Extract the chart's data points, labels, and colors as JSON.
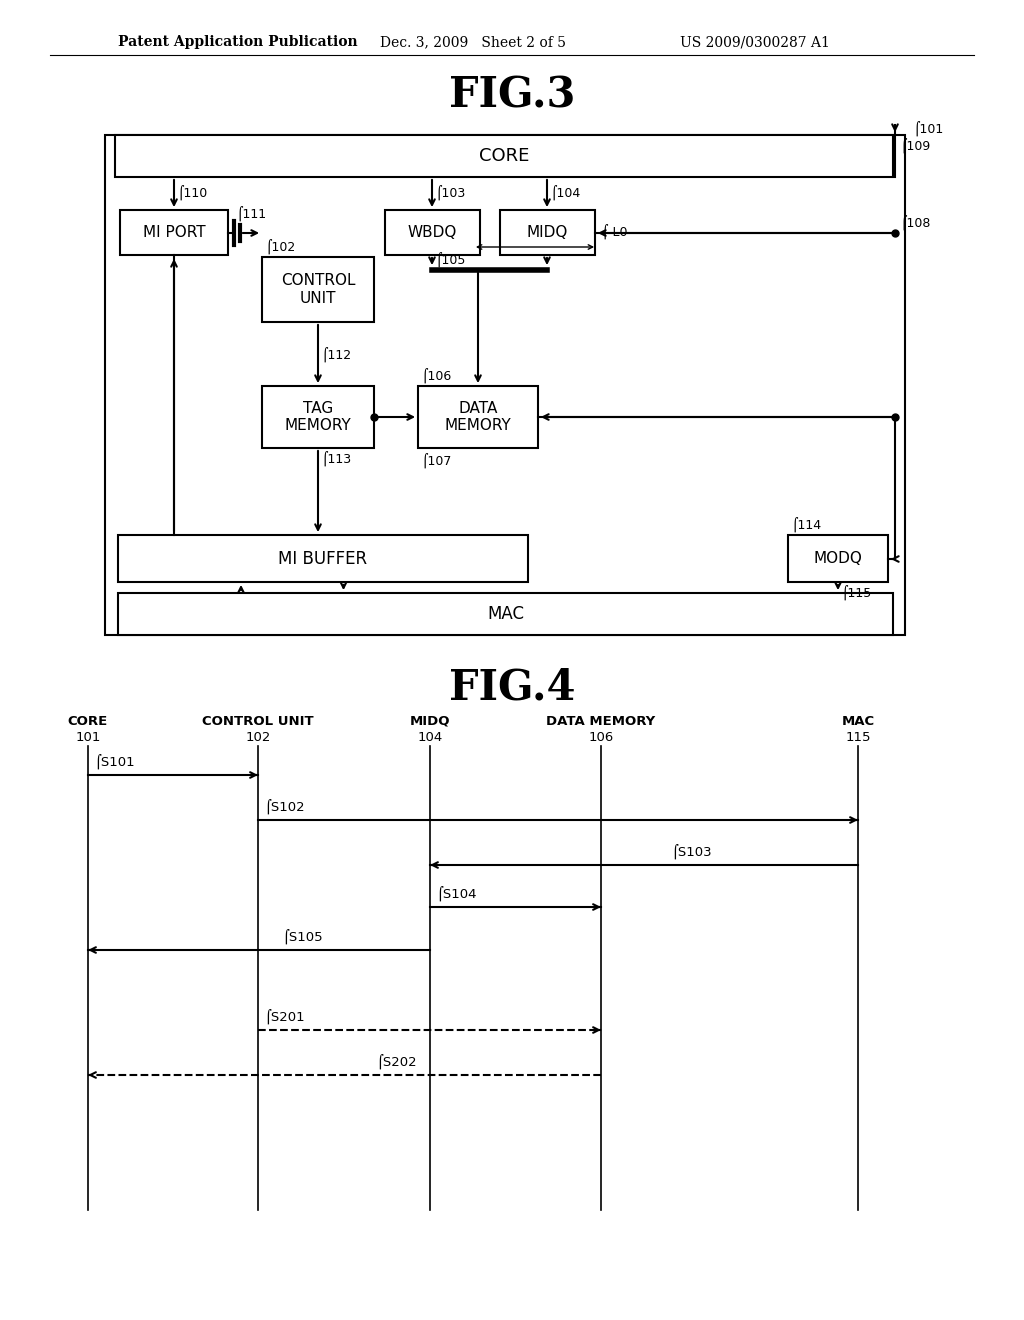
{
  "header_left": "Patent Application Publication",
  "header_mid": "Dec. 3, 2009   Sheet 2 of 5",
  "header_right": "US 2009/0300287 A1",
  "bg_color": "#ffffff",
  "line_color": "#000000",
  "fig3_title": "FIG.3",
  "fig4_title": "FIG.4"
}
